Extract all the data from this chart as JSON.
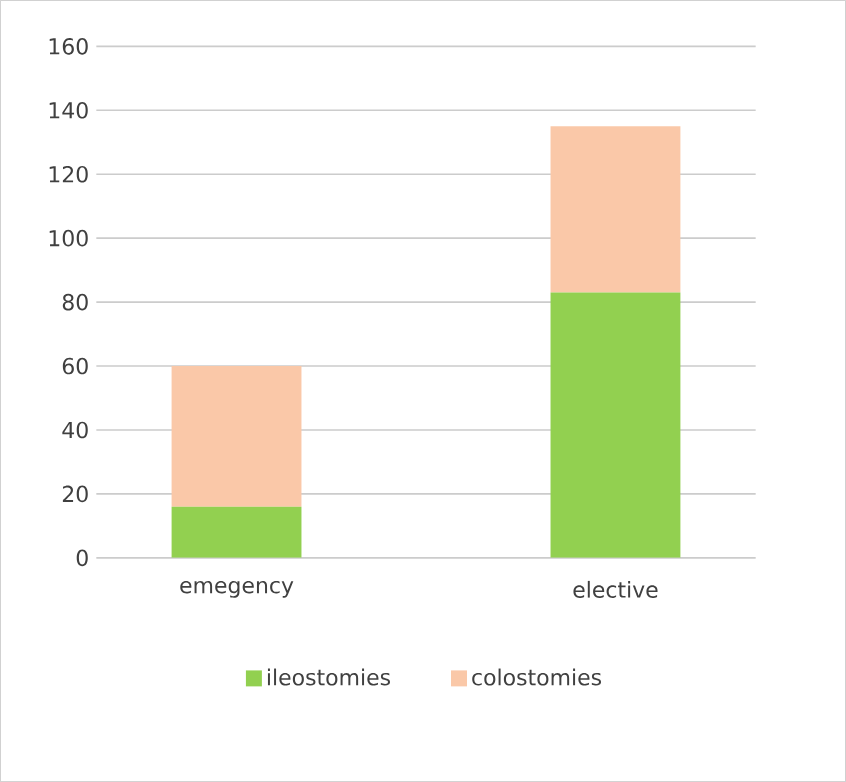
{
  "chart_data": {
    "type": "bar",
    "stacked": true,
    "categories": [
      "emegency",
      "elective"
    ],
    "series": [
      {
        "name": "ileostomies",
        "color": "#92d050",
        "values": [
          16,
          83
        ]
      },
      {
        "name": "colostomies",
        "color": "#fac8a8",
        "values": [
          44,
          52
        ]
      }
    ],
    "ylim": [
      0,
      160
    ],
    "yticks": [
      0,
      20,
      40,
      60,
      80,
      100,
      120,
      140,
      160
    ],
    "grid": "y",
    "legend": "bottom"
  }
}
